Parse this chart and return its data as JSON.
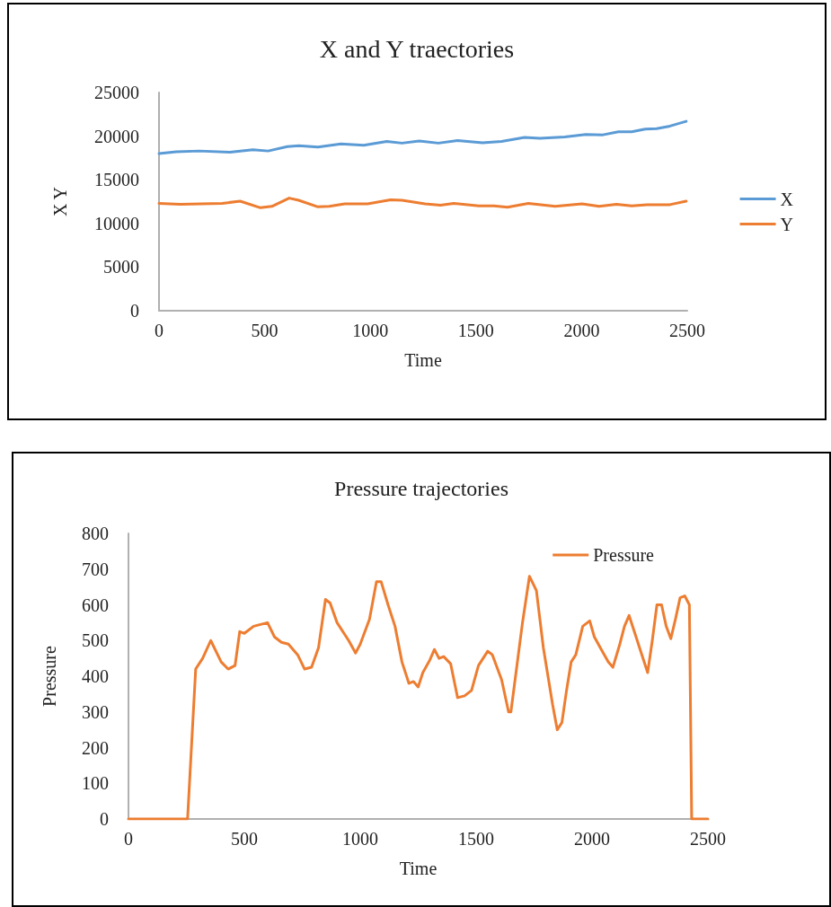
{
  "chart_data": [
    {
      "type": "line",
      "title": "X and Y traectories",
      "xlabel": "Time",
      "ylabel": "X Y",
      "xlim": [
        0,
        2500
      ],
      "xticks": [
        0,
        500,
        1000,
        1500,
        2000,
        2500
      ],
      "ylim": [
        0,
        25000
      ],
      "yticks": [
        0,
        5000,
        10000,
        15000,
        20000,
        25000
      ],
      "grid": false,
      "legend": "right",
      "marker": "none",
      "line_style": "solid",
      "series": [
        {
          "name": "X",
          "color": "#5b9bd5",
          "x": [
            0,
            82,
            190,
            335,
            444,
            516,
            607,
            661,
            752,
            861,
            969,
            1078,
            1150,
            1232,
            1322,
            1413,
            1531,
            1621,
            1730,
            1803,
            1920,
            2020,
            2101,
            2174,
            2237,
            2301,
            2355,
            2418,
            2495
          ],
          "values": [
            18000,
            18200,
            18300,
            18150,
            18450,
            18300,
            18800,
            18900,
            18750,
            19100,
            18950,
            19400,
            19200,
            19450,
            19200,
            19500,
            19250,
            19400,
            19850,
            19750,
            19900,
            20200,
            20150,
            20500,
            20500,
            20800,
            20850,
            21150,
            21700
          ]
        },
        {
          "name": "Y",
          "color": "#ed7d31",
          "x": [
            0,
            100,
            299,
            384,
            480,
            534,
            616,
            661,
            752,
            806,
            879,
            987,
            1096,
            1150,
            1259,
            1332,
            1395,
            1513,
            1585,
            1649,
            1748,
            1875,
            2002,
            2083,
            2165,
            2237,
            2310,
            2418,
            2495
          ],
          "values": [
            12300,
            12200,
            12300,
            12550,
            11800,
            11950,
            12900,
            12650,
            11900,
            11950,
            12250,
            12250,
            12700,
            12650,
            12250,
            12100,
            12300,
            12000,
            12000,
            11850,
            12300,
            11950,
            12250,
            11950,
            12200,
            12000,
            12150,
            12150,
            12550
          ]
        }
      ]
    },
    {
      "type": "line",
      "title": "Pressure trajectories",
      "xlabel": "Time",
      "ylabel": "Pressure",
      "xlim": [
        0,
        2500
      ],
      "xticks": [
        0,
        500,
        1000,
        1500,
        2000,
        2500
      ],
      "ylim": [
        0,
        800
      ],
      "yticks": [
        0,
        100,
        200,
        300,
        400,
        500,
        600,
        700,
        800
      ],
      "grid": false,
      "legend": "top right",
      "marker": "none",
      "line_style": "solid",
      "series": [
        {
          "name": "Pressure",
          "color": "#ed7d31",
          "x": [
            0,
            255,
            290,
            320,
            355,
            400,
            430,
            460,
            480,
            500,
            540,
            570,
            600,
            630,
            660,
            690,
            730,
            760,
            790,
            820,
            850,
            870,
            900,
            950,
            980,
            1000,
            1040,
            1070,
            1090,
            1120,
            1150,
            1180,
            1210,
            1230,
            1250,
            1270,
            1300,
            1320,
            1340,
            1360,
            1390,
            1420,
            1450,
            1480,
            1510,
            1550,
            1570,
            1610,
            1640,
            1650,
            1680,
            1700,
            1730,
            1760,
            1790,
            1830,
            1850,
            1870,
            1890,
            1910,
            1930,
            1960,
            1990,
            2010,
            2040,
            2070,
            2090,
            2120,
            2140,
            2160,
            2190,
            2210,
            2240,
            2260,
            2280,
            2300,
            2320,
            2340,
            2360,
            2380,
            2400,
            2420,
            2430,
            2500
          ],
          "values": [
            0,
            0,
            420,
            450,
            500,
            440,
            420,
            430,
            525,
            520,
            540,
            545,
            550,
            510,
            495,
            490,
            460,
            420,
            425,
            480,
            615,
            605,
            550,
            500,
            465,
            490,
            560,
            665,
            665,
            600,
            540,
            440,
            380,
            385,
            370,
            410,
            445,
            475,
            450,
            455,
            435,
            340,
            345,
            360,
            430,
            470,
            460,
            390,
            300,
            300,
            450,
            550,
            680,
            640,
            480,
            320,
            250,
            270,
            360,
            440,
            460,
            540,
            555,
            510,
            475,
            440,
            425,
            490,
            540,
            570,
            510,
            470,
            410,
            500,
            600,
            600,
            540,
            505,
            560,
            620,
            625,
            600,
            0,
            0
          ]
        }
      ]
    }
  ]
}
